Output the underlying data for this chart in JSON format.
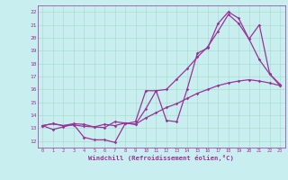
{
  "xlabel": "Windchill (Refroidissement éolien,°C)",
  "bg_color": "#c8eef0",
  "line_color": "#993399",
  "grid_color": "#aaddcc",
  "xlim": [
    -0.5,
    23.5
  ],
  "ylim": [
    11.5,
    22.5
  ],
  "xticks": [
    0,
    1,
    2,
    3,
    4,
    5,
    6,
    7,
    8,
    9,
    10,
    11,
    12,
    13,
    14,
    15,
    16,
    17,
    18,
    19,
    20,
    21,
    22,
    23
  ],
  "yticks": [
    12,
    13,
    14,
    15,
    16,
    17,
    18,
    19,
    20,
    21,
    22
  ],
  "series1_x": [
    0,
    1,
    2,
    3,
    4,
    5,
    6,
    7,
    8,
    9,
    10,
    11,
    12,
    13,
    14,
    15,
    16,
    17,
    18,
    19,
    20,
    21,
    22,
    23
  ],
  "series1_y": [
    13.2,
    13.35,
    13.2,
    13.25,
    13.15,
    13.1,
    13.05,
    13.5,
    13.4,
    13.3,
    14.5,
    15.9,
    16.0,
    16.8,
    17.6,
    18.5,
    19.3,
    20.5,
    21.8,
    21.1,
    19.9,
    18.3,
    17.2,
    16.3
  ],
  "series2_x": [
    0,
    1,
    2,
    3,
    4,
    5,
    6,
    7,
    8,
    9,
    10,
    11,
    12,
    13,
    14,
    15,
    16,
    17,
    18,
    19,
    20,
    21,
    22,
    23
  ],
  "series2_y": [
    13.2,
    12.9,
    13.1,
    13.3,
    12.3,
    12.1,
    12.1,
    11.9,
    13.35,
    13.5,
    15.9,
    15.9,
    13.6,
    13.5,
    16.0,
    18.8,
    19.2,
    21.1,
    22.0,
    21.5,
    19.9,
    21.0,
    17.2,
    16.4
  ],
  "series3_x": [
    0,
    1,
    2,
    3,
    4,
    5,
    6,
    7,
    8,
    9,
    10,
    11,
    12,
    13,
    14,
    15,
    16,
    17,
    18,
    19,
    20,
    21,
    22,
    23
  ],
  "series3_y": [
    13.2,
    13.35,
    13.2,
    13.35,
    13.3,
    13.1,
    13.3,
    13.2,
    13.4,
    13.3,
    13.8,
    14.2,
    14.6,
    14.9,
    15.3,
    15.7,
    16.0,
    16.3,
    16.5,
    16.65,
    16.75,
    16.65,
    16.5,
    16.3
  ]
}
